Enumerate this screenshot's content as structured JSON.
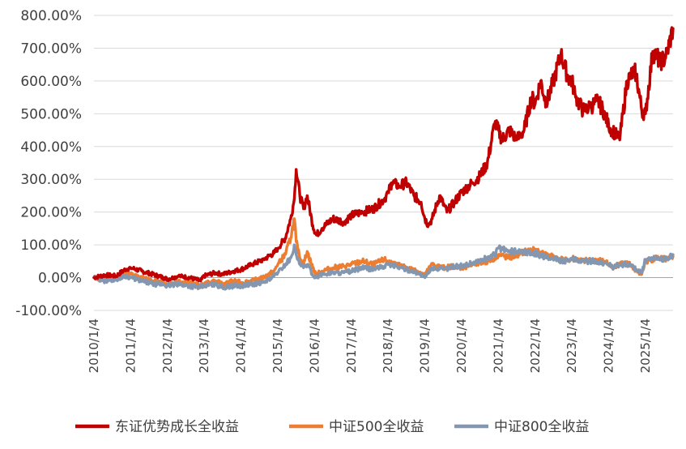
{
  "chart_data": {
    "type": "line",
    "title": "",
    "xlabel": "",
    "ylabel": "",
    "ylim": [
      -100,
      800
    ],
    "y_ticks": [
      -100,
      0,
      100,
      200,
      300,
      400,
      500,
      600,
      700,
      800
    ],
    "y_tick_labels": [
      "-100.00%",
      "0.00%",
      "100.00%",
      "200.00%",
      "300.00%",
      "400.00%",
      "500.00%",
      "600.00%",
      "700.00%",
      "800.00%"
    ],
    "x_ticks": [
      "2010/1/4",
      "2011/1/4",
      "2012/1/4",
      "2013/1/4",
      "2014/1/4",
      "2015/1/4",
      "2016/1/4",
      "2017/1/4",
      "2018/1/4",
      "2019/1/4",
      "2020/1/4",
      "2021/1/4",
      "2022/1/4",
      "2023/1/4",
      "2024/1/4",
      "2025/1/4"
    ],
    "x_start_year": 2010,
    "x_end_year": 2025.75,
    "grid": "horizontal",
    "legend_position": "bottom",
    "series": [
      {
        "name": "东证优势成长全收益",
        "color": "#C00000",
        "x": [
          2010.0,
          2010.3,
          2010.6,
          2010.85,
          2011.0,
          2011.3,
          2011.6,
          2011.9,
          2012.0,
          2012.3,
          2012.6,
          2012.9,
          2013.0,
          2013.3,
          2013.5,
          2013.8,
          2014.0,
          2014.3,
          2014.6,
          2014.9,
          2015.0,
          2015.2,
          2015.35,
          2015.45,
          2015.5,
          2015.6,
          2015.7,
          2015.8,
          2015.95,
          2016.05,
          2016.2,
          2016.5,
          2016.8,
          2017.0,
          2017.3,
          2017.6,
          2017.9,
          2018.0,
          2018.1,
          2018.3,
          2018.5,
          2018.7,
          2018.9,
          2019.0,
          2019.1,
          2019.2,
          2019.4,
          2019.6,
          2019.8,
          2020.0,
          2020.1,
          2020.3,
          2020.5,
          2020.7,
          2020.9,
          2021.0,
          2021.1,
          2021.3,
          2021.5,
          2021.7,
          2021.9,
          2022.0,
          2022.15,
          2022.3,
          2022.5,
          2022.7,
          2022.9,
          2023.0,
          2023.1,
          2023.3,
          2023.5,
          2023.7,
          2023.9,
          2024.0,
          2024.1,
          2024.3,
          2024.5,
          2024.7,
          2024.75,
          2024.9,
          2025.0,
          2025.2,
          2025.4,
          2025.55,
          2025.75
        ],
        "values": [
          0,
          8,
          5,
          25,
          30,
          20,
          10,
          0,
          -5,
          5,
          0,
          -10,
          5,
          15,
          10,
          20,
          25,
          40,
          55,
          75,
          90,
          120,
          180,
          240,
          330,
          250,
          210,
          250,
          160,
          130,
          150,
          180,
          170,
          190,
          200,
          210,
          240,
          260,
          290,
          280,
          290,
          250,
          230,
          180,
          160,
          180,
          250,
          200,
          230,
          260,
          270,
          290,
          310,
          350,
          470,
          450,
          420,
          450,
          420,
          450,
          550,
          530,
          600,
          530,
          600,
          680,
          610,
          600,
          550,
          510,
          520,
          540,
          500,
          460,
          450,
          420,
          600,
          630,
          620,
          510,
          500,
          690,
          660,
          670,
          760
        ]
      },
      {
        "name": "中证500全收益",
        "color": "#ED7D31",
        "x": [
          2010.0,
          2010.3,
          2010.6,
          2010.85,
          2011.0,
          2011.3,
          2011.6,
          2011.9,
          2012.0,
          2012.3,
          2012.6,
          2012.9,
          2013.0,
          2013.3,
          2013.5,
          2013.8,
          2014.0,
          2014.3,
          2014.6,
          2014.9,
          2015.0,
          2015.2,
          2015.35,
          2015.45,
          2015.5,
          2015.6,
          2015.7,
          2015.8,
          2015.95,
          2016.05,
          2016.2,
          2016.5,
          2016.8,
          2017.0,
          2017.3,
          2017.6,
          2017.9,
          2018.0,
          2018.2,
          2018.5,
          2018.8,
          2019.0,
          2019.2,
          2019.5,
          2019.8,
          2020.0,
          2020.3,
          2020.6,
          2020.9,
          2021.0,
          2021.3,
          2021.6,
          2021.9,
          2022.0,
          2022.3,
          2022.6,
          2022.9,
          2023.0,
          2023.3,
          2023.6,
          2023.9,
          2024.0,
          2024.1,
          2024.3,
          2024.6,
          2024.75,
          2024.9,
          2025.0,
          2025.3,
          2025.6,
          2025.75
        ],
        "values": [
          0,
          -5,
          0,
          15,
          10,
          0,
          -10,
          -15,
          -20,
          -10,
          -15,
          -25,
          -20,
          -10,
          -20,
          -10,
          -15,
          -10,
          0,
          20,
          40,
          70,
          120,
          180,
          110,
          60,
          40,
          80,
          30,
          10,
          20,
          30,
          35,
          40,
          50,
          40,
          55,
          50,
          40,
          30,
          20,
          10,
          40,
          30,
          35,
          30,
          40,
          45,
          60,
          70,
          60,
          75,
          85,
          80,
          70,
          60,
          50,
          60,
          50,
          55,
          50,
          40,
          30,
          45,
          40,
          20,
          10,
          50,
          60,
          55,
          65
        ]
      },
      {
        "name": "中证800全收益",
        "color": "#8497B0",
        "x": [
          2010.0,
          2010.3,
          2010.6,
          2010.85,
          2011.0,
          2011.3,
          2011.6,
          2011.9,
          2012.0,
          2012.3,
          2012.6,
          2012.9,
          2013.0,
          2013.3,
          2013.5,
          2013.8,
          2014.0,
          2014.3,
          2014.6,
          2014.9,
          2015.0,
          2015.2,
          2015.35,
          2015.45,
          2015.5,
          2015.6,
          2015.7,
          2015.8,
          2015.95,
          2016.05,
          2016.2,
          2016.5,
          2016.8,
          2017.0,
          2017.3,
          2017.6,
          2017.9,
          2018.0,
          2018.2,
          2018.5,
          2018.8,
          2019.0,
          2019.2,
          2019.5,
          2019.8,
          2020.0,
          2020.3,
          2020.6,
          2020.9,
          2021.0,
          2021.3,
          2021.6,
          2021.9,
          2022.0,
          2022.3,
          2022.6,
          2022.9,
          2023.0,
          2023.3,
          2023.6,
          2023.9,
          2024.0,
          2024.1,
          2024.3,
          2024.6,
          2024.75,
          2024.9,
          2025.0,
          2025.3,
          2025.6,
          2025.75
        ],
        "values": [
          0,
          -10,
          -5,
          5,
          0,
          -10,
          -20,
          -20,
          -25,
          -20,
          -25,
          -30,
          -25,
          -20,
          -30,
          -25,
          -25,
          -20,
          -15,
          5,
          15,
          40,
          60,
          100,
          70,
          40,
          30,
          40,
          10,
          0,
          10,
          15,
          15,
          20,
          30,
          25,
          35,
          40,
          35,
          25,
          15,
          0,
          30,
          25,
          35,
          35,
          45,
          55,
          70,
          90,
          80,
          80,
          75,
          75,
          60,
          55,
          50,
          55,
          50,
          50,
          45,
          40,
          30,
          40,
          40,
          25,
          15,
          55,
          60,
          55,
          70
        ]
      }
    ]
  }
}
